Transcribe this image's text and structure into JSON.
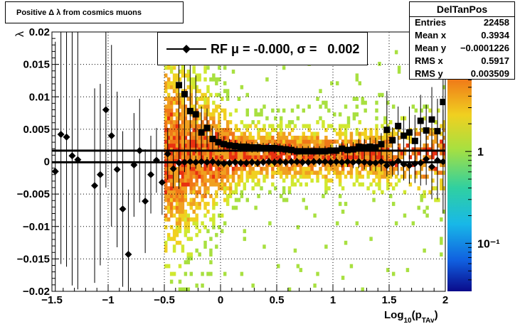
{
  "title": "Positive Δ λ  from cosmics muons",
  "legend": {
    "label": "RF μ = -0.000, σ =   0.002",
    "marker": "black-diamond-with-line"
  },
  "stats": {
    "name": "DelTanPos",
    "rows": [
      {
        "key": "Entries",
        "value": "22458"
      },
      {
        "key": "Mean x",
        "value": "0.3934"
      },
      {
        "key": "Mean y",
        "value": "−0.0001226"
      },
      {
        "key": "RMS x",
        "value": "0.5917"
      },
      {
        "key": "RMS y",
        "value": "0.003509"
      }
    ]
  },
  "colors": {
    "band": "#000000",
    "markers": "#000000",
    "frame": "#000000"
  },
  "chart_data": {
    "type": "heatmap",
    "xlabel": "Log",
    "xlabel_sub": "10",
    "xlabel_paren": "(p",
    "xlabel_sub2": "TAv",
    "xlabel_close": ")",
    "ylabel": "λ",
    "xlim": [
      -1.5,
      2
    ],
    "ylim": [
      -0.02,
      0.02
    ],
    "xticks": [
      "−1.5",
      "−1",
      "−0.5",
      "0",
      "0.5",
      "1",
      "1.5",
      "2"
    ],
    "yticks": [
      "−0.02",
      "−0.015",
      "−0.01",
      "−0.005",
      "0",
      "0.005",
      "0.01",
      "0.015",
      "0.02"
    ],
    "grid": true,
    "colorbar": {
      "scale": "log",
      "ticks": [
        "1",
        "10⁻¹"
      ],
      "tick_values": [
        1,
        0.1
      ],
      "range": [
        0.03,
        20
      ]
    },
    "band": [
      -0.0001,
      0.0017
    ],
    "series": [
      {
        "marker": "diamond",
        "points": [
          {
            "x": -1.47,
            "y": -0.0015,
            "err": 0.02
          },
          {
            "x": -1.42,
            "y": 0.0042,
            "err": 0.02
          },
          {
            "x": -1.37,
            "y": 0.0038,
            "err": 0.02
          },
          {
            "x": -1.32,
            "y": 0.0009,
            "err": 0.02
          },
          {
            "x": -1.27,
            "y": 0.0003,
            "err": 0.02
          },
          {
            "x": -1.12,
            "y": -0.0037,
            "err": 0.015
          },
          {
            "x": -1.07,
            "y": -0.002,
            "err": 0.014
          },
          {
            "x": -1.02,
            "y": 0.008,
            "err": 0.012
          },
          {
            "x": -0.97,
            "y": 0.004,
            "err": 0.014
          },
          {
            "x": -0.92,
            "y": -0.0012,
            "err": 0.012
          },
          {
            "x": -0.87,
            "y": -0.0073,
            "err": 0.012
          },
          {
            "x": -0.82,
            "y": -0.0143,
            "err": 0.01
          },
          {
            "x": -0.77,
            "y": -0.0005,
            "err": 0.008
          },
          {
            "x": -0.72,
            "y": 0.0017,
            "err": 0.008
          },
          {
            "x": -0.67,
            "y": -0.0061,
            "err": 0.008
          },
          {
            "x": -0.62,
            "y": -0.002,
            "err": 0.006
          },
          {
            "x": -0.57,
            "y": 0.0002,
            "err": 0.005
          },
          {
            "x": -0.52,
            "y": -0.0032,
            "err": 0.005
          },
          {
            "x": -0.47,
            "y": 0.0012,
            "err": 0.004
          },
          {
            "x": -0.42,
            "y": -0.0011,
            "err": 0.003
          },
          {
            "x": -0.37,
            "y": -0.0002,
            "err": 0.002
          },
          {
            "x": -0.32,
            "y": -0.0001,
            "err": 0.0015
          },
          {
            "x": -0.27,
            "y": 0.0,
            "err": 0.0012
          },
          {
            "x": -0.22,
            "y": -0.0001,
            "err": 0.001
          },
          {
            "x": -0.17,
            "y": 0.0,
            "err": 0.0009
          },
          {
            "x": -0.12,
            "y": -0.0001,
            "err": 0.0008
          },
          {
            "x": -0.07,
            "y": 0.0,
            "err": 0.0007
          },
          {
            "x": -0.02,
            "y": -0.0002,
            "err": 0.0006
          },
          {
            "x": 0.03,
            "y": -0.0003,
            "err": 0.0006
          },
          {
            "x": 0.08,
            "y": -0.0002,
            "err": 0.0006
          },
          {
            "x": 0.13,
            "y": -0.0001,
            "err": 0.0006
          },
          {
            "x": 0.18,
            "y": -0.0002,
            "err": 0.0006
          },
          {
            "x": 0.23,
            "y": -0.0002,
            "err": 0.0006
          },
          {
            "x": 0.28,
            "y": -0.0001,
            "err": 0.0006
          },
          {
            "x": 0.33,
            "y": -0.0002,
            "err": 0.0006
          },
          {
            "x": 0.38,
            "y": -0.0001,
            "err": 0.0006
          },
          {
            "x": 0.43,
            "y": 0.0,
            "err": 0.0006
          },
          {
            "x": 0.48,
            "y": -0.0001,
            "err": 0.0006
          },
          {
            "x": 0.53,
            "y": 0.0,
            "err": 0.0006
          },
          {
            "x": 0.58,
            "y": -0.0001,
            "err": 0.0006
          },
          {
            "x": 0.63,
            "y": 0.0,
            "err": 0.0006
          },
          {
            "x": 0.68,
            "y": 0.0,
            "err": 0.0006
          },
          {
            "x": 0.73,
            "y": -0.0001,
            "err": 0.0006
          },
          {
            "x": 0.78,
            "y": -0.0001,
            "err": 0.0006
          },
          {
            "x": 0.83,
            "y": 0.0,
            "err": 0.0006
          },
          {
            "x": 0.88,
            "y": 0.0,
            "err": 0.0006
          },
          {
            "x": 0.93,
            "y": 0.0,
            "err": 0.0007
          },
          {
            "x": 0.98,
            "y": -0.0001,
            "err": 0.0007
          },
          {
            "x": 1.03,
            "y": 0.0,
            "err": 0.0007
          },
          {
            "x": 1.08,
            "y": -0.0001,
            "err": 0.0008
          },
          {
            "x": 1.13,
            "y": 0.0,
            "err": 0.0008
          },
          {
            "x": 1.18,
            "y": -0.0001,
            "err": 0.0009
          },
          {
            "x": 1.23,
            "y": 0.0,
            "err": 0.001
          },
          {
            "x": 1.28,
            "y": -0.0001,
            "err": 0.0011
          },
          {
            "x": 1.33,
            "y": -0.0002,
            "err": 0.0012
          },
          {
            "x": 1.38,
            "y": -0.0002,
            "err": 0.0013
          },
          {
            "x": 1.43,
            "y": 0.0,
            "err": 0.0015
          },
          {
            "x": 1.48,
            "y": -0.0006,
            "err": 0.0017
          },
          {
            "x": 1.53,
            "y": -0.0003,
            "err": 0.002
          },
          {
            "x": 1.58,
            "y": 0.0001,
            "err": 0.0022
          },
          {
            "x": 1.63,
            "y": -0.0004,
            "err": 0.0025
          },
          {
            "x": 1.68,
            "y": -0.0006,
            "err": 0.0028
          },
          {
            "x": 1.73,
            "y": -0.0003,
            "err": 0.003
          },
          {
            "x": 1.78,
            "y": -0.0002,
            "err": 0.0035
          },
          {
            "x": 1.83,
            "y": 0.0004,
            "err": 0.004
          },
          {
            "x": 1.88,
            "y": -0.0008,
            "err": 0.005
          },
          {
            "x": 1.93,
            "y": 0.0002,
            "err": 0.006
          },
          {
            "x": 1.98,
            "y": 0.0,
            "err": 0.008
          }
        ]
      },
      {
        "marker": "square",
        "points": [
          {
            "x": -0.37,
            "y": 0.0118,
            "err": 0.016
          },
          {
            "x": -0.32,
            "y": 0.0104,
            "err": 0.012
          },
          {
            "x": -0.27,
            "y": 0.0078,
            "err": 0.008
          },
          {
            "x": -0.22,
            "y": 0.0073,
            "err": 0.006
          },
          {
            "x": -0.17,
            "y": 0.0045,
            "err": 0.004
          },
          {
            "x": -0.12,
            "y": 0.0052,
            "err": 0.003
          },
          {
            "x": -0.07,
            "y": 0.0035,
            "err": 0.002
          },
          {
            "x": -0.02,
            "y": 0.003,
            "err": 0.0015
          },
          {
            "x": 0.03,
            "y": 0.0027,
            "err": 0.0012
          },
          {
            "x": 0.08,
            "y": 0.0025,
            "err": 0.001
          },
          {
            "x": 0.13,
            "y": 0.0024,
            "err": 0.0009
          },
          {
            "x": 0.18,
            "y": 0.0023,
            "err": 0.0008
          },
          {
            "x": 0.23,
            "y": 0.0023,
            "err": 0.0008
          },
          {
            "x": 0.28,
            "y": 0.0022,
            "err": 0.0008
          },
          {
            "x": 0.33,
            "y": 0.0022,
            "err": 0.0008
          },
          {
            "x": 0.38,
            "y": 0.0021,
            "err": 0.0008
          },
          {
            "x": 0.43,
            "y": 0.0021,
            "err": 0.0008
          },
          {
            "x": 0.48,
            "y": 0.0021,
            "err": 0.0008
          },
          {
            "x": 0.53,
            "y": 0.002,
            "err": 0.0008
          },
          {
            "x": 0.58,
            "y": 0.0019,
            "err": 0.0008
          },
          {
            "x": 0.63,
            "y": 0.0018,
            "err": 0.0008
          },
          {
            "x": 0.68,
            "y": 0.0016,
            "err": 0.0008
          },
          {
            "x": 0.73,
            "y": 0.0016,
            "err": 0.0008
          },
          {
            "x": 0.78,
            "y": 0.0016,
            "err": 0.0008
          },
          {
            "x": 0.83,
            "y": 0.0016,
            "err": 0.0008
          },
          {
            "x": 0.88,
            "y": 0.0016,
            "err": 0.0008
          },
          {
            "x": 0.93,
            "y": 0.0016,
            "err": 0.0008
          },
          {
            "x": 0.98,
            "y": 0.0017,
            "err": 0.0009
          },
          {
            "x": 1.03,
            "y": 0.0017,
            "err": 0.0009
          },
          {
            "x": 1.08,
            "y": 0.002,
            "err": 0.001
          },
          {
            "x": 1.13,
            "y": 0.0018,
            "err": 0.001
          },
          {
            "x": 1.18,
            "y": 0.0019,
            "err": 0.0011
          },
          {
            "x": 1.23,
            "y": 0.0023,
            "err": 0.0012
          },
          {
            "x": 1.28,
            "y": 0.0022,
            "err": 0.0013
          },
          {
            "x": 1.33,
            "y": 0.0023,
            "err": 0.0014
          },
          {
            "x": 1.38,
            "y": 0.0022,
            "err": 0.0015
          },
          {
            "x": 1.43,
            "y": 0.0027,
            "err": 0.0017
          },
          {
            "x": 1.48,
            "y": 0.0049,
            "err": 0.006
          },
          {
            "x": 1.53,
            "y": 0.0033,
            "err": 0.002
          },
          {
            "x": 1.58,
            "y": 0.0055,
            "err": 0.003
          },
          {
            "x": 1.63,
            "y": 0.004,
            "err": 0.003
          },
          {
            "x": 1.68,
            "y": 0.0045,
            "err": 0.004
          },
          {
            "x": 1.73,
            "y": 0.0032,
            "err": 0.004
          },
          {
            "x": 1.78,
            "y": 0.0063,
            "err": 0.004
          },
          {
            "x": 1.83,
            "y": 0.0048,
            "err": 0.004
          },
          {
            "x": 1.88,
            "y": 0.0065,
            "err": 0.005
          },
          {
            "x": 1.93,
            "y": 0.0047,
            "err": 0.005
          },
          {
            "x": 1.98,
            "y": 0.0092,
            "err": 0.009
          }
        ]
      }
    ]
  }
}
